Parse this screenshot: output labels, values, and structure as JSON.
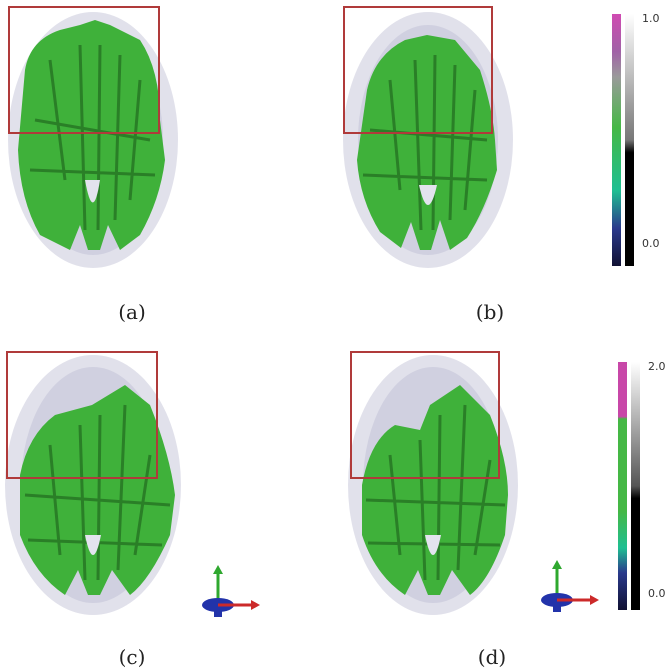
{
  "panels": [
    {
      "id": "a",
      "caption": "(a)"
    },
    {
      "id": "b",
      "caption": "(b)"
    },
    {
      "id": "c",
      "caption": "(c)"
    },
    {
      "id": "d",
      "caption": "(d)"
    }
  ],
  "colorbar_top": {
    "max_label": "1.0",
    "min_label": "0.0"
  },
  "colorbar_bottom": {
    "max_label": "2.0",
    "min_label": "0.0"
  },
  "colors": {
    "brain_green": "#3fb13a",
    "brain_dark_green": "#2a7f27",
    "brain_shell": "#d7d7e4",
    "roi_red": "#b03a3a",
    "cbar_magenta": "#c847a8",
    "cbar_gray": "#a0a0a0",
    "cbar_green": "#45b845",
    "cbar_blue": "#2a3a8c",
    "cbar_black": "#000000"
  },
  "icons": {
    "axes_gizmo": "axes-gizmo-icon"
  }
}
